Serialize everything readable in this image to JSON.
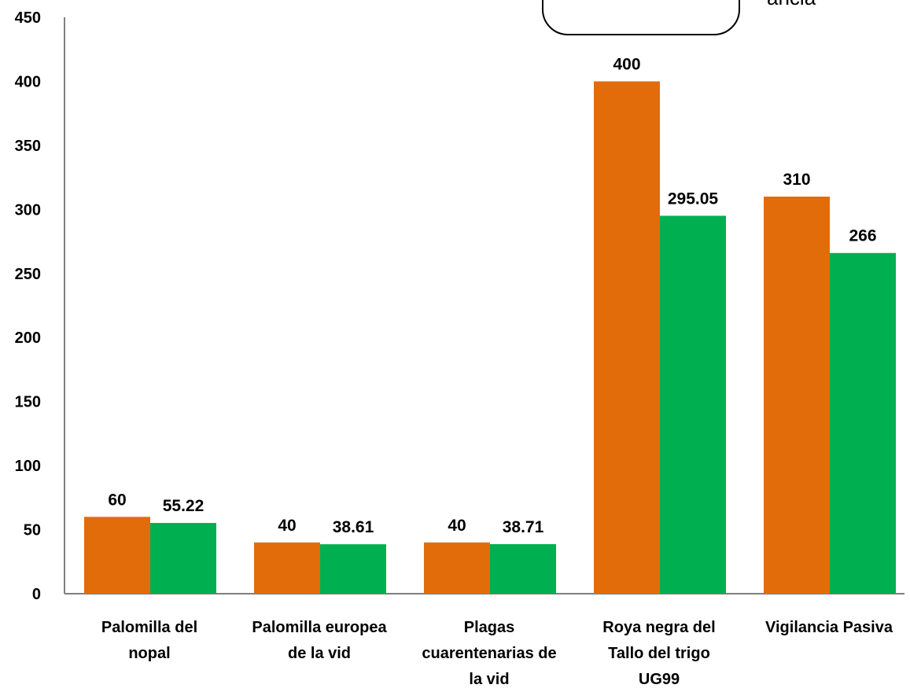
{
  "chart_data": {
    "type": "bar",
    "title": "",
    "xlabel": "",
    "ylabel": "",
    "ylim": [
      0,
      450
    ],
    "yticks": [
      0,
      50,
      100,
      150,
      200,
      250,
      300,
      350,
      400,
      450
    ],
    "grid": false,
    "legend": "none",
    "categories": [
      [
        "Palomilla del",
        "nopal"
      ],
      [
        "Palomilla europea",
        "de la vid"
      ],
      [
        "Plagas",
        "cuarentenarias de",
        "la vid"
      ],
      [
        "Roya negra del",
        "Tallo del trigo",
        "UG99"
      ],
      [
        "Vigilancia Pasiva"
      ]
    ],
    "series": [
      {
        "color": "#e36c0a",
        "values": [
          60,
          40,
          40,
          400,
          310
        ],
        "labels": [
          "60",
          "40",
          "40",
          "400",
          "310"
        ]
      },
      {
        "color": "#00b050",
        "values": [
          55.22,
          38.61,
          38.71,
          295.05,
          266
        ],
        "labels": [
          "55.22",
          "38.61",
          "38.71",
          "295.05",
          "266"
        ]
      }
    ],
    "callout_text": "ancia"
  }
}
